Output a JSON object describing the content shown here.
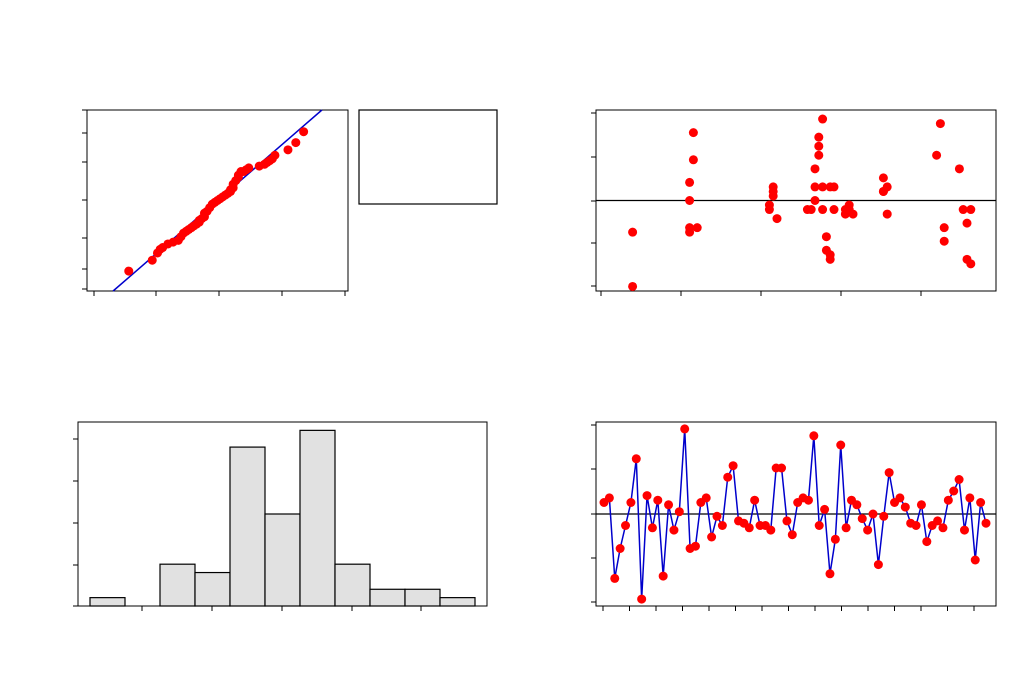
{
  "colors": {
    "point": "#ff0000",
    "line": "#0000cc",
    "bar_fill": "#e1e1e1",
    "axis": "#000000"
  },
  "chart_data": [
    {
      "type": "scatter",
      "id": "normal-probability-plot",
      "xlim": [
        0,
        100
      ],
      "ylim": [
        0,
        100
      ],
      "fit_line": [
        [
          10,
          0
        ],
        [
          90,
          100
        ]
      ],
      "x": [
        16,
        25,
        27,
        28,
        29,
        31,
        33,
        35,
        36,
        37,
        38,
        39,
        40,
        41,
        42,
        43,
        43,
        44,
        45,
        45,
        46,
        47,
        48,
        49,
        50,
        51,
        52,
        53,
        54,
        55,
        55,
        56,
        56,
        57,
        58,
        58,
        59,
        60,
        61,
        62,
        66,
        68,
        69,
        70,
        71,
        72,
        77,
        80,
        83
      ],
      "y": [
        11,
        17,
        21,
        23,
        24,
        26,
        27,
        28,
        30,
        32,
        33,
        34,
        35,
        36,
        37,
        38,
        39,
        40,
        41,
        43,
        44,
        46,
        48,
        49,
        50,
        51,
        52,
        53,
        54,
        55,
        56,
        57,
        59,
        61,
        63,
        64,
        66,
        66,
        67,
        68,
        69,
        70,
        71,
        72,
        73,
        75,
        78,
        82,
        88
      ],
      "legend_box": true
    },
    {
      "type": "scatter",
      "id": "residuals-vs-fits",
      "xlim": [
        0,
        100
      ],
      "ylim": [
        -2.0,
        2.0
      ],
      "reference_y": 0,
      "x": [
        7,
        7,
        22,
        22,
        22,
        22,
        23,
        23,
        24,
        43,
        43,
        44,
        44,
        44,
        45,
        53,
        54,
        55,
        55,
        55,
        56,
        56,
        56,
        57,
        57,
        57,
        58,
        58,
        59,
        59,
        59,
        60,
        60,
        63,
        63,
        64,
        64,
        65,
        73,
        73,
        73,
        74,
        74,
        87,
        88,
        89,
        89,
        93,
        94,
        95,
        95,
        96,
        96
      ],
      "y": [
        -1.9,
        -0.7,
        -0.6,
        -0.7,
        0.0,
        0.4,
        0.9,
        1.5,
        -0.6,
        -0.2,
        -0.1,
        0.1,
        0.2,
        0.3,
        -0.4,
        -0.2,
        -0.2,
        0.0,
        0.3,
        0.7,
        1.0,
        1.2,
        1.4,
        1.8,
        -0.2,
        0.3,
        -0.8,
        -1.1,
        -1.3,
        -1.2,
        0.3,
        -0.2,
        0.3,
        -0.2,
        -0.3,
        -0.2,
        -0.1,
        -0.3,
        0.2,
        0.5,
        0.2,
        0.3,
        -0.3,
        1.0,
        1.7,
        -0.9,
        -0.6,
        0.7,
        -0.2,
        -0.5,
        -1.3,
        -1.4,
        -0.2
      ]
    },
    {
      "type": "bar",
      "id": "histogram",
      "ylim": [
        0,
        11
      ],
      "values": [
        0.5,
        0,
        2.5,
        2.0,
        9.5,
        5.5,
        10.5,
        2.5,
        1.0,
        1.0,
        0.5
      ]
    },
    {
      "type": "line",
      "id": "residuals-vs-order",
      "xlim": [
        1,
        75
      ],
      "ylim": [
        -2.0,
        2.0
      ],
      "reference_y": 0,
      "values": [
        0.25,
        0.35,
        -1.4,
        -0.75,
        -0.25,
        0.25,
        1.2,
        -1.85,
        0.4,
        -0.3,
        0.3,
        -1.35,
        0.2,
        -0.35,
        0.05,
        1.85,
        -0.75,
        -0.7,
        0.25,
        0.35,
        -0.5,
        -0.05,
        -0.25,
        0.8,
        1.05,
        -0.15,
        -0.2,
        -0.3,
        0.3,
        -0.25,
        -0.25,
        -0.35,
        1.0,
        1.0,
        -0.15,
        -0.45,
        0.25,
        0.35,
        0.3,
        1.7,
        -0.25,
        0.1,
        -1.3,
        -0.55,
        1.5,
        -0.3,
        0.3,
        0.2,
        -0.1,
        -0.35,
        0.0,
        -1.1,
        -0.05,
        0.9,
        0.25,
        0.35,
        0.15,
        -0.2,
        -0.25,
        0.2,
        -0.6,
        -0.25,
        -0.15,
        -0.3,
        0.3,
        0.5,
        0.75,
        -0.35,
        0.35,
        -1.0,
        0.25,
        -0.2
      ],
      "show_markers": true
    }
  ]
}
